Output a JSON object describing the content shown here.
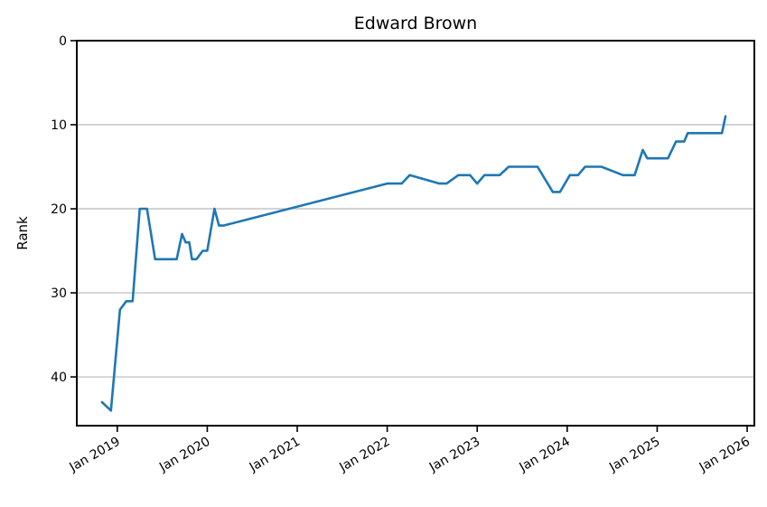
{
  "title": "Edward Brown",
  "chart_data": {
    "type": "line",
    "title": "Edward Brown",
    "xlabel": "",
    "ylabel": "Rank",
    "grid": "horizontal-only",
    "legend": "none",
    "line_color": "#1f77b4",
    "grid_color": "#b9b9b9",
    "frame_color": "#000000",
    "background_color": "#ffffff",
    "y_axis": {
      "inverted": true,
      "ticks": [
        0,
        10,
        20,
        30,
        40
      ],
      "range": [
        0,
        45.8
      ]
    },
    "x_axis": {
      "tick_years": [
        2019,
        2020,
        2021,
        2022,
        2023,
        2024,
        2025,
        2026
      ],
      "tick_labels": [
        "Jan 2019",
        "Jan 2020",
        "Jan 2021",
        "Jan 2022",
        "Jan 2023",
        "Jan 2024",
        "Jan 2025",
        "Jan 2026"
      ],
      "range": [
        2018.55,
        2026.08
      ],
      "label_rotation_deg": 30
    },
    "series": [
      {
        "name": "Rank",
        "points_format": "[decimal_year, rank]",
        "points": [
          [
            2018.83,
            43
          ],
          [
            2018.93,
            44
          ],
          [
            2019.03,
            32
          ],
          [
            2019.1,
            31
          ],
          [
            2019.17,
            31
          ],
          [
            2019.25,
            20
          ],
          [
            2019.33,
            20
          ],
          [
            2019.42,
            26
          ],
          [
            2019.66,
            26
          ],
          [
            2019.72,
            23
          ],
          [
            2019.76,
            24
          ],
          [
            2019.8,
            24
          ],
          [
            2019.83,
            26
          ],
          [
            2019.88,
            26
          ],
          [
            2019.95,
            25
          ],
          [
            2020.0,
            25
          ],
          [
            2020.08,
            20
          ],
          [
            2020.13,
            22
          ],
          [
            2020.18,
            22
          ],
          [
            2022.0,
            17
          ],
          [
            2022.16,
            17
          ],
          [
            2022.25,
            16
          ],
          [
            2022.58,
            17
          ],
          [
            2022.66,
            17
          ],
          [
            2022.79,
            16
          ],
          [
            2022.92,
            16
          ],
          [
            2023.0,
            17
          ],
          [
            2023.08,
            16
          ],
          [
            2023.25,
            16
          ],
          [
            2023.35,
            15
          ],
          [
            2023.67,
            15
          ],
          [
            2023.84,
            18
          ],
          [
            2023.92,
            18
          ],
          [
            2024.03,
            16
          ],
          [
            2024.12,
            16
          ],
          [
            2024.2,
            15
          ],
          [
            2024.38,
            15
          ],
          [
            2024.62,
            16
          ],
          [
            2024.75,
            16
          ],
          [
            2024.84,
            13
          ],
          [
            2024.89,
            14
          ],
          [
            2025.12,
            14
          ],
          [
            2025.21,
            12
          ],
          [
            2025.3,
            12
          ],
          [
            2025.34,
            11
          ],
          [
            2025.72,
            11
          ],
          [
            2025.76,
            9
          ]
        ]
      }
    ]
  }
}
